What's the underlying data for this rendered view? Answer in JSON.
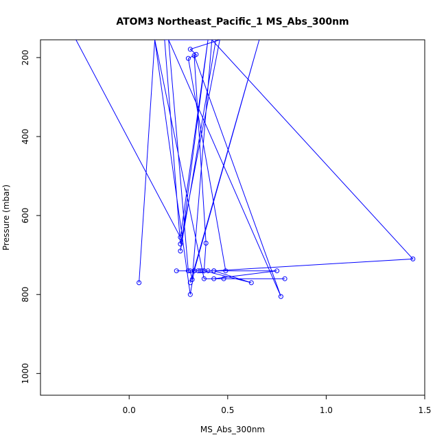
{
  "chart_data": {
    "type": "line",
    "title": "ATOM3 Northeast_Pacific_1 MS_Abs_300nm",
    "xlabel": "MS_Abs_300nm",
    "ylabel": "Pressure (mbar)",
    "xlim": [
      -0.45,
      1.5
    ],
    "ylim": [
      1055,
      155
    ],
    "y_reversed": true,
    "xticks": [
      0.0,
      0.5,
      1.0,
      1.5
    ],
    "xtick_labels": [
      "0.0",
      "0.5",
      "1.0",
      "1.5"
    ],
    "yticks": [
      200,
      400,
      600,
      800,
      1000
    ],
    "ytick_labels": [
      "200",
      "400",
      "600",
      "800",
      "1000"
    ],
    "series_color": "#0000FF",
    "series": [
      {
        "marker": "circle-open",
        "points": [
          [
            -0.27,
            155
          ],
          [
            0.26,
            655
          ],
          [
            0.4,
            155
          ],
          [
            0.26,
            690
          ],
          [
            0.44,
            155
          ],
          [
            0.18,
            155
          ],
          [
            0.26,
            672
          ],
          [
            0.46,
            155
          ],
          [
            0.31,
            179
          ],
          [
            0.34,
            192
          ],
          [
            0.3,
            202
          ],
          [
            0.49,
            740
          ],
          [
            0.3,
            740
          ],
          [
            0.2,
            155
          ],
          [
            0.77,
            805
          ],
          [
            0.33,
            195
          ],
          [
            0.39,
            670
          ],
          [
            0.38,
            740
          ],
          [
            0.43,
            740
          ],
          [
            1.44,
            710
          ],
          [
            0.42,
            155
          ],
          [
            0.32,
            762
          ],
          [
            0.31,
            740
          ],
          [
            0.33,
            740
          ],
          [
            0.35,
            740
          ],
          [
            0.38,
            740
          ],
          [
            0.62,
            770
          ],
          [
            0.43,
            740
          ],
          [
            0.33,
            740
          ],
          [
            0.36,
            740
          ],
          [
            0.24,
            740
          ],
          [
            0.37,
            740
          ],
          [
            0.4,
            740
          ],
          [
            0.75,
            740
          ],
          [
            0.43,
            760
          ],
          [
            0.48,
            760
          ],
          [
            0.79,
            760
          ],
          [
            0.38,
            760
          ],
          [
            0.13,
            155
          ],
          [
            0.05,
            770
          ],
          [
            0.13,
            155
          ],
          [
            0.31,
            800
          ],
          [
            0.33,
            740
          ],
          [
            0.66,
            155
          ],
          [
            0.31,
            770
          ]
        ]
      }
    ]
  }
}
